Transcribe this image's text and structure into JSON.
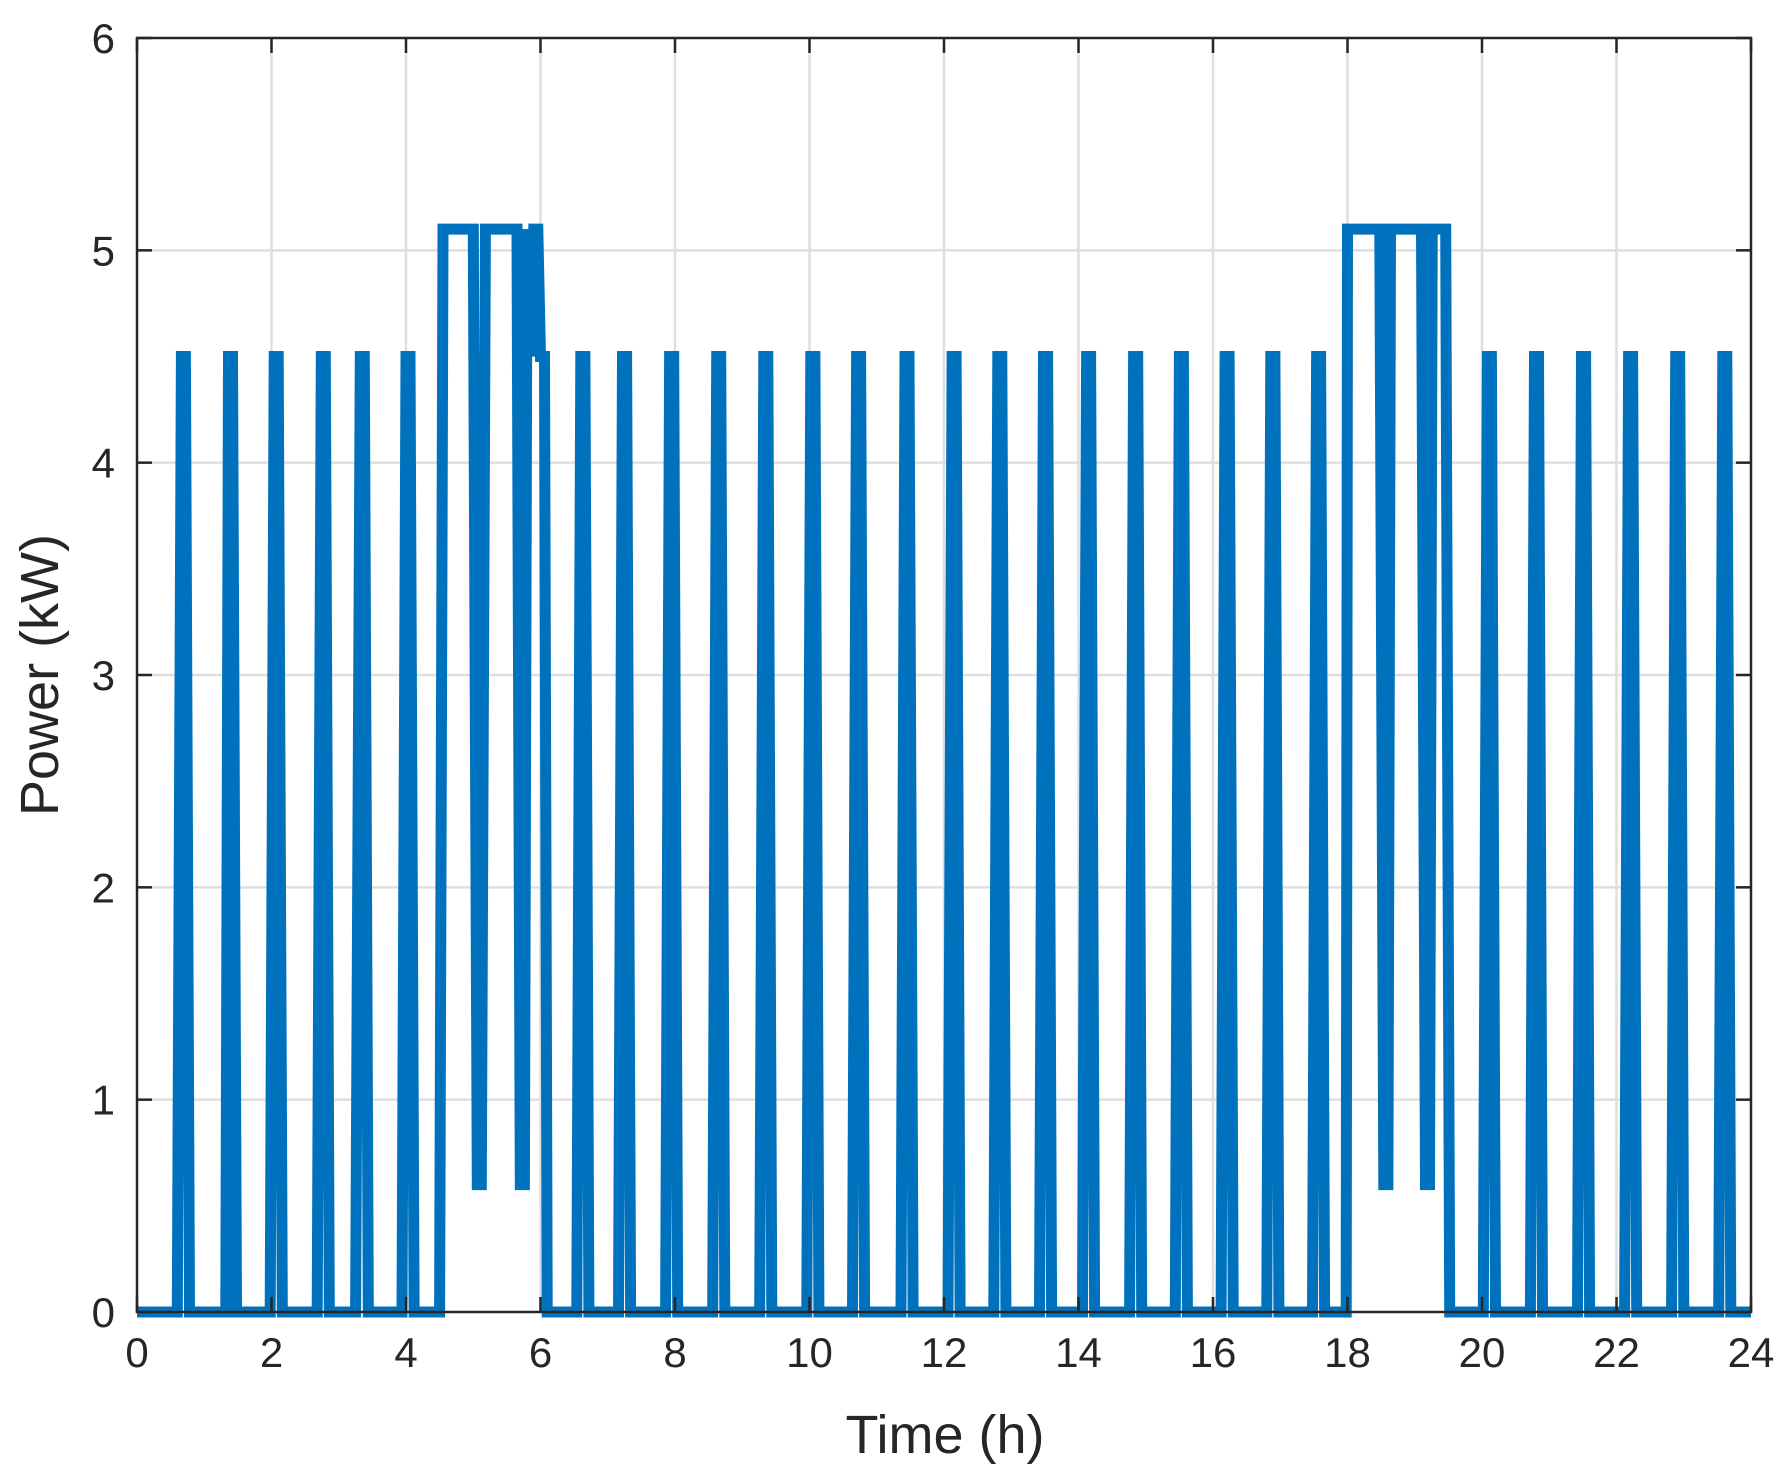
{
  "chart_data": {
    "type": "line",
    "title": "",
    "xlabel": "Time (h)",
    "ylabel": "Power (kW)",
    "xlim": [
      0,
      24
    ],
    "ylim": [
      0,
      6
    ],
    "xticks": [
      0,
      2,
      4,
      6,
      8,
      10,
      12,
      14,
      16,
      18,
      20,
      22,
      24
    ],
    "yticks": [
      0,
      1,
      2,
      3,
      4,
      5,
      6
    ],
    "grid": true,
    "series": [
      {
        "color": "#0072BD",
        "points": [
          [
            0,
            0
          ],
          [
            0.6,
            0
          ],
          [
            0.66,
            4.5
          ],
          [
            0.72,
            4.5
          ],
          [
            0.78,
            0
          ],
          [
            1.32,
            0
          ],
          [
            1.36,
            4.5
          ],
          [
            1.42,
            4.5
          ],
          [
            1.48,
            0
          ],
          [
            1.98,
            0
          ],
          [
            2.04,
            4.5
          ],
          [
            2.1,
            4.5
          ],
          [
            2.16,
            0
          ],
          [
            2.68,
            0
          ],
          [
            2.74,
            4.5
          ],
          [
            2.8,
            4.5
          ],
          [
            2.86,
            0
          ],
          [
            3.25,
            0
          ],
          [
            3.32,
            4.5
          ],
          [
            3.38,
            4.5
          ],
          [
            3.44,
            0
          ],
          [
            3.94,
            0
          ],
          [
            4.0,
            4.5
          ],
          [
            4.06,
            4.5
          ],
          [
            4.12,
            0
          ],
          [
            4.5,
            0
          ],
          [
            4.55,
            5.1
          ],
          [
            5.0,
            5.1
          ],
          [
            5.06,
            0.6
          ],
          [
            5.12,
            0.6
          ],
          [
            5.18,
            5.1
          ],
          [
            5.65,
            5.1
          ],
          [
            5.7,
            0.6
          ],
          [
            5.76,
            0.6
          ],
          [
            5.8,
            5.1
          ],
          [
            5.86,
            4.5
          ],
          [
            5.9,
            5.1
          ],
          [
            5.96,
            5.1
          ],
          [
            6.0,
            4.5
          ],
          [
            6.06,
            4.5
          ],
          [
            6.1,
            0
          ],
          [
            6.54,
            0
          ],
          [
            6.6,
            4.5
          ],
          [
            6.66,
            4.5
          ],
          [
            6.72,
            0
          ],
          [
            7.16,
            0
          ],
          [
            7.22,
            4.5
          ],
          [
            7.28,
            4.5
          ],
          [
            7.34,
            0
          ],
          [
            7.86,
            0
          ],
          [
            7.92,
            4.5
          ],
          [
            7.98,
            4.5
          ],
          [
            8.04,
            0
          ],
          [
            8.56,
            0
          ],
          [
            8.62,
            4.5
          ],
          [
            8.68,
            4.5
          ],
          [
            8.74,
            0
          ],
          [
            9.26,
            0
          ],
          [
            9.32,
            4.5
          ],
          [
            9.38,
            4.5
          ],
          [
            9.44,
            0
          ],
          [
            9.96,
            0
          ],
          [
            10.02,
            4.5
          ],
          [
            10.08,
            4.5
          ],
          [
            10.14,
            0
          ],
          [
            10.64,
            0
          ],
          [
            10.7,
            4.5
          ],
          [
            10.76,
            4.5
          ],
          [
            10.82,
            0
          ],
          [
            11.36,
            0
          ],
          [
            11.42,
            4.5
          ],
          [
            11.48,
            4.5
          ],
          [
            11.54,
            0
          ],
          [
            12.06,
            0
          ],
          [
            12.12,
            4.5
          ],
          [
            12.18,
            4.5
          ],
          [
            12.24,
            0
          ],
          [
            12.74,
            0
          ],
          [
            12.8,
            4.5
          ],
          [
            12.86,
            4.5
          ],
          [
            12.92,
            0
          ],
          [
            13.42,
            0
          ],
          [
            13.48,
            4.5
          ],
          [
            13.54,
            4.5
          ],
          [
            13.6,
            0
          ],
          [
            14.06,
            0
          ],
          [
            14.12,
            4.5
          ],
          [
            14.18,
            4.5
          ],
          [
            14.24,
            0
          ],
          [
            14.76,
            0
          ],
          [
            14.82,
            4.5
          ],
          [
            14.88,
            4.5
          ],
          [
            14.94,
            0
          ],
          [
            15.44,
            0
          ],
          [
            15.5,
            4.5
          ],
          [
            15.56,
            4.5
          ],
          [
            15.62,
            0
          ],
          [
            16.12,
            0
          ],
          [
            16.18,
            4.5
          ],
          [
            16.24,
            4.5
          ],
          [
            16.3,
            0
          ],
          [
            16.8,
            0
          ],
          [
            16.86,
            4.5
          ],
          [
            16.92,
            4.5
          ],
          [
            16.98,
            0
          ],
          [
            17.48,
            0
          ],
          [
            17.54,
            4.5
          ],
          [
            17.6,
            4.5
          ],
          [
            17.66,
            0
          ],
          [
            17.98,
            0
          ],
          [
            18.0,
            5.1
          ],
          [
            18.48,
            5.1
          ],
          [
            18.54,
            0.6
          ],
          [
            18.6,
            0.6
          ],
          [
            18.64,
            5.1
          ],
          [
            19.1,
            5.1
          ],
          [
            19.16,
            0.6
          ],
          [
            19.22,
            0.6
          ],
          [
            19.26,
            5.1
          ],
          [
            19.4,
            5.1
          ],
          [
            19.46,
            5.1
          ],
          [
            19.52,
            0
          ],
          [
            20.02,
            0
          ],
          [
            20.08,
            4.5
          ],
          [
            20.14,
            4.5
          ],
          [
            20.2,
            0
          ],
          [
            20.72,
            0
          ],
          [
            20.78,
            4.5
          ],
          [
            20.84,
            4.5
          ],
          [
            20.9,
            0
          ],
          [
            21.42,
            0
          ],
          [
            21.48,
            4.5
          ],
          [
            21.54,
            4.5
          ],
          [
            21.6,
            0
          ],
          [
            22.12,
            0
          ],
          [
            22.18,
            4.5
          ],
          [
            22.24,
            4.5
          ],
          [
            22.3,
            0
          ],
          [
            22.82,
            0
          ],
          [
            22.88,
            4.5
          ],
          [
            22.94,
            4.5
          ],
          [
            23.0,
            0
          ],
          [
            23.52,
            0
          ],
          [
            23.58,
            4.5
          ],
          [
            23.64,
            4.5
          ],
          [
            23.7,
            0
          ],
          [
            24.0,
            0
          ]
        ]
      }
    ]
  }
}
